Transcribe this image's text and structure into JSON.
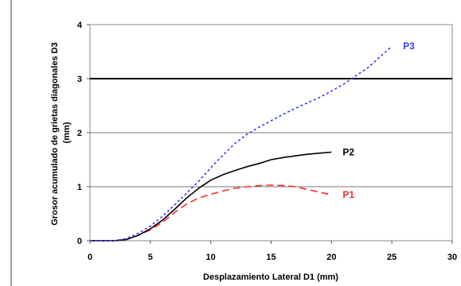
{
  "chart_data": {
    "type": "line",
    "title": "",
    "xlabel": "Desplazamiento Lateral D1 (mm)",
    "ylabel_lines": [
      "Grosor acumulado de grietas diagonales D3",
      "(mm)"
    ],
    "xlim": [
      0,
      30
    ],
    "ylim": [
      0,
      4
    ],
    "xticks": [
      0,
      5,
      10,
      15,
      20,
      25,
      30
    ],
    "yticks": [
      0,
      1,
      2,
      3,
      4
    ],
    "grid": "horizontal",
    "legend": "inline-labels",
    "reference_line": {
      "y": 3
    },
    "series": [
      {
        "name": "P1",
        "color": "#ff2a2a",
        "dash": "long-dash",
        "x": [
          0,
          2,
          3,
          4,
          5,
          6,
          7,
          8,
          9,
          10,
          11,
          12,
          13,
          14,
          15,
          16,
          17,
          18,
          19,
          20
        ],
        "y": [
          0,
          0,
          0.02,
          0.1,
          0.2,
          0.34,
          0.52,
          0.68,
          0.79,
          0.86,
          0.92,
          0.97,
          1.0,
          1.02,
          1.03,
          1.02,
          1.0,
          0.95,
          0.9,
          0.85
        ]
      },
      {
        "name": "P2",
        "color": "#000000",
        "dash": "solid",
        "x": [
          0,
          2,
          3,
          4,
          5,
          6,
          7,
          8,
          9,
          10,
          11,
          12,
          13,
          14,
          15,
          16,
          17,
          18,
          19,
          20
        ],
        "y": [
          0,
          0,
          0.02,
          0.1,
          0.22,
          0.38,
          0.58,
          0.79,
          0.97,
          1.12,
          1.22,
          1.3,
          1.37,
          1.43,
          1.5,
          1.54,
          1.57,
          1.6,
          1.62,
          1.64
        ]
      },
      {
        "name": "P3",
        "color": "#3a3aff",
        "dash": "dotted",
        "x": [
          0,
          2,
          3,
          4,
          5,
          6,
          7,
          8,
          9,
          10,
          11,
          12,
          13,
          14,
          15,
          16,
          17,
          18,
          19,
          20,
          21,
          22,
          23,
          24,
          25
        ],
        "y": [
          0,
          0,
          0.04,
          0.14,
          0.27,
          0.45,
          0.66,
          0.88,
          1.1,
          1.35,
          1.58,
          1.8,
          1.97,
          2.1,
          2.22,
          2.34,
          2.45,
          2.55,
          2.65,
          2.77,
          2.9,
          3.05,
          3.2,
          3.4,
          3.6
        ]
      }
    ]
  }
}
